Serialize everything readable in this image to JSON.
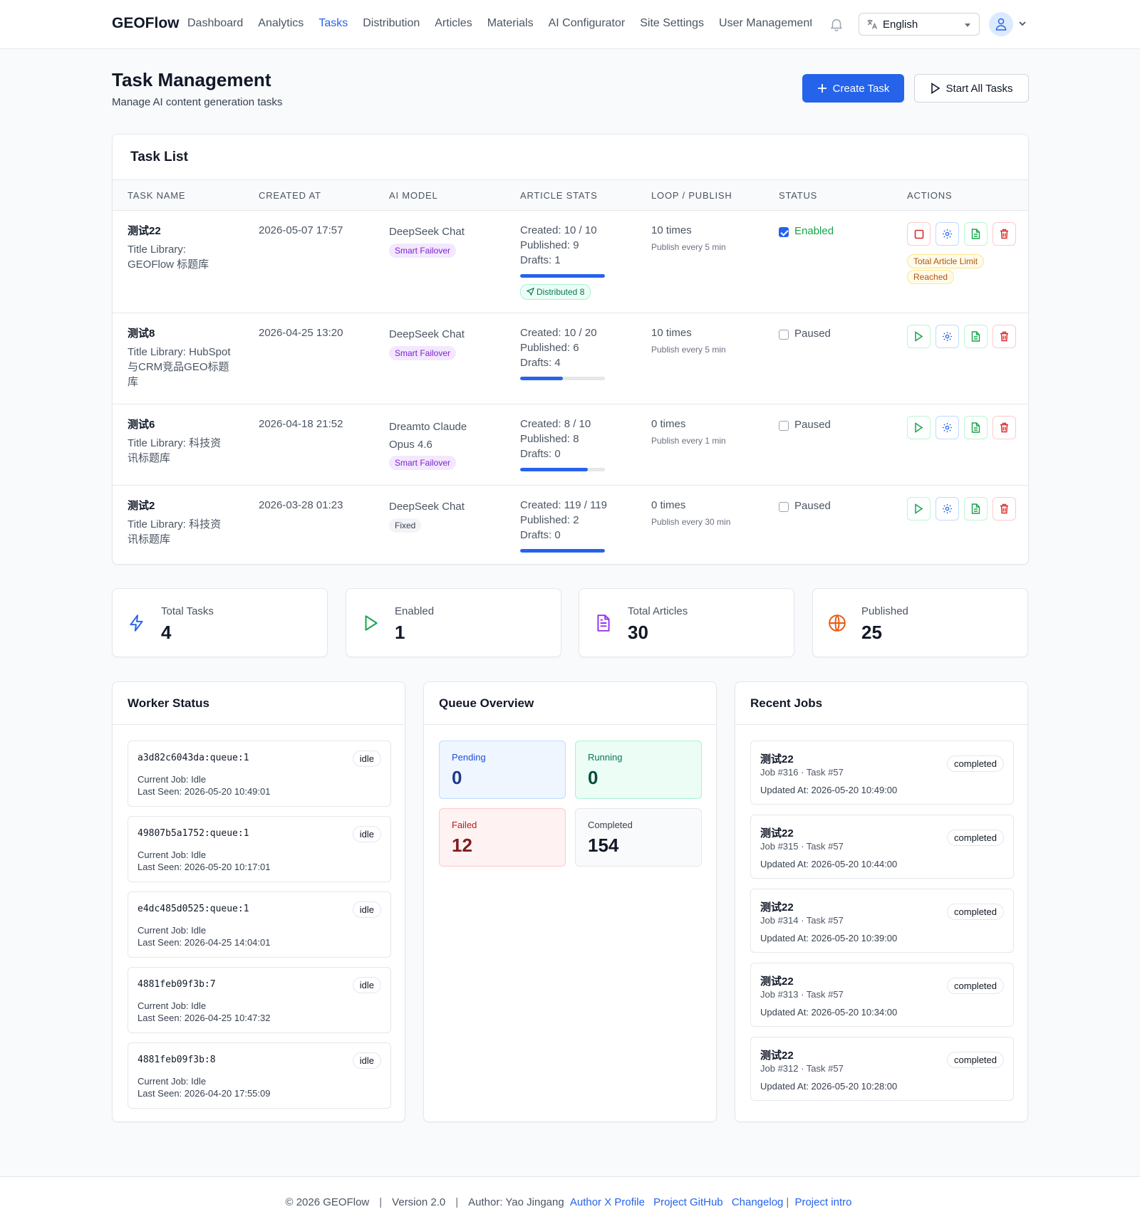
{
  "header": {
    "brand": "GEOFlow",
    "nav": [
      "Dashboard",
      "Analytics",
      "Tasks",
      "Distribution",
      "Articles",
      "Materials",
      "AI Configurator",
      "Site Settings",
      "User Management"
    ],
    "active_nav": "Tasks",
    "language": "English"
  },
  "page": {
    "title": "Task Management",
    "subtitle": "Manage AI content generation tasks",
    "create_label": "Create Task",
    "start_all_label": "Start All Tasks"
  },
  "task_list": {
    "title": "Task List",
    "columns": [
      "TASK NAME",
      "CREATED AT",
      "AI MODEL",
      "ARTICLE STATS",
      "LOOP / PUBLISH",
      "STATUS",
      "ACTIONS"
    ],
    "rows": [
      {
        "name": "测试22",
        "library": "Title Library: GEOFlow 标题库",
        "created_at": "2026-05-07 17:57",
        "model": "DeepSeek Chat",
        "model_tag": "Smart Failover",
        "created": "Created: 10 / 10",
        "published": "Published: 9",
        "drafts": "Drafts: 1",
        "progress": 1.0,
        "distributed": "Distributed 8",
        "loop": "10 times",
        "publish_every": "Publish every 5 min",
        "status": "Enabled",
        "enabled": true,
        "limit_note": "Total Article Limit Reached"
      },
      {
        "name": "测试8",
        "library": "Title Library: HubSpot与CRM竞品GEO标题库",
        "created_at": "2026-04-25 13:20",
        "model": "DeepSeek Chat",
        "model_tag": "Smart Failover",
        "created": "Created: 10 / 20",
        "published": "Published: 6",
        "drafts": "Drafts: 4",
        "progress": 0.5,
        "loop": "10 times",
        "publish_every": "Publish every 5 min",
        "status": "Paused",
        "enabled": false
      },
      {
        "name": "测试6",
        "library": "Title Library: 科技资讯标题库",
        "created_at": "2026-04-18 21:52",
        "model": "Dreamto Claude Opus 4.6",
        "model_tag": "Smart Failover",
        "created": "Created: 8 / 10",
        "published": "Published: 8",
        "drafts": "Drafts: 0",
        "progress": 0.8,
        "loop": "0 times",
        "publish_every": "Publish every 1 min",
        "status": "Paused",
        "enabled": false
      },
      {
        "name": "测试2",
        "library": "Title Library: 科技资讯标题库",
        "created_at": "2026-03-28 01:23",
        "model": "DeepSeek Chat",
        "model_tag": "Fixed",
        "created": "Created: 119 / 119",
        "published": "Published: 2",
        "drafts": "Drafts: 0",
        "progress": 1.0,
        "loop": "0 times",
        "publish_every": "Publish every 30 min",
        "status": "Paused",
        "enabled": false
      }
    ]
  },
  "stats": [
    {
      "label": "Total Tasks",
      "value": "4",
      "icon": "lightning-icon",
      "color": "#2563eb"
    },
    {
      "label": "Enabled",
      "value": "1",
      "icon": "play-icon",
      "color": "#16a34a"
    },
    {
      "label": "Total Articles",
      "value": "30",
      "icon": "document-icon",
      "color": "#9333ea"
    },
    {
      "label": "Published",
      "value": "25",
      "icon": "globe-icon",
      "color": "#ea580c"
    }
  ],
  "workers": {
    "title": "Worker Status",
    "items": [
      {
        "id": "a3d82c6043da:queue:1",
        "state": "idle",
        "job": "Current Job: Idle",
        "seen": "Last Seen: 2026-05-20 10:49:01"
      },
      {
        "id": "49807b5a1752:queue:1",
        "state": "idle",
        "job": "Current Job: Idle",
        "seen": "Last Seen: 2026-05-20 10:17:01"
      },
      {
        "id": "e4dc485d0525:queue:1",
        "state": "idle",
        "job": "Current Job: Idle",
        "seen": "Last Seen: 2026-04-25 14:04:01"
      },
      {
        "id": "4881feb09f3b:7",
        "state": "idle",
        "job": "Current Job: Idle",
        "seen": "Last Seen: 2026-04-25 10:47:32"
      },
      {
        "id": "4881feb09f3b:8",
        "state": "idle",
        "job": "Current Job: Idle",
        "seen": "Last Seen: 2026-04-20 17:55:09"
      }
    ]
  },
  "queue": {
    "title": "Queue Overview",
    "pending_label": "Pending",
    "pending": "0",
    "running_label": "Running",
    "running": "0",
    "failed_label": "Failed",
    "failed": "12",
    "completed_label": "Completed",
    "completed": "154"
  },
  "jobs": {
    "title": "Recent Jobs",
    "items": [
      {
        "name": "测试22",
        "meta": "Job #316 · Task #57",
        "updated": "Updated At: 2026-05-20 10:49:00",
        "state": "completed"
      },
      {
        "name": "测试22",
        "meta": "Job #315 · Task #57",
        "updated": "Updated At: 2026-05-20 10:44:00",
        "state": "completed"
      },
      {
        "name": "测试22",
        "meta": "Job #314 · Task #57",
        "updated": "Updated At: 2026-05-20 10:39:00",
        "state": "completed"
      },
      {
        "name": "测试22",
        "meta": "Job #313 · Task #57",
        "updated": "Updated At: 2026-05-20 10:34:00",
        "state": "completed"
      },
      {
        "name": "测试22",
        "meta": "Job #312 · Task #57",
        "updated": "Updated At: 2026-05-20 10:28:00",
        "state": "completed"
      }
    ]
  },
  "footer": {
    "copyright": "© 2026 GEOFlow",
    "version": "Version 2.0",
    "author": "Author: Yao Jingang",
    "links": [
      "Author X Profile",
      "Project GitHub",
      "Changelog",
      "Project intro"
    ]
  }
}
